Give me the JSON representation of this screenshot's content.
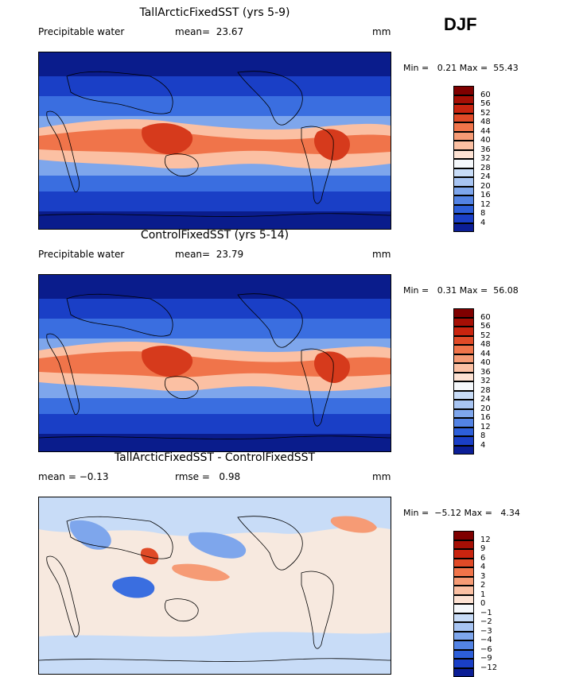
{
  "season": "DJF",
  "panels": [
    {
      "title": "TallArcticFixedSST (yrs 5-9)",
      "left_label": "Precipitable water",
      "stat_label": "mean=",
      "stat_value": "23.67",
      "stat2_label": "",
      "stat2_value": "",
      "units": "mm",
      "min_label": "Min =",
      "min": "0.21",
      "max_label": "Max =",
      "max": "55.43",
      "colorbar": {
        "labels": [
          "60",
          "56",
          "52",
          "48",
          "44",
          "40",
          "36",
          "32",
          "28",
          "24",
          "20",
          "16",
          "12",
          "8",
          "4"
        ],
        "colors": [
          "#7f0000",
          "#a50f05",
          "#c8240f",
          "#e04a27",
          "#f0744a",
          "#f69b75",
          "#fbc0a3",
          "#fde2d3",
          "#f5f8fb",
          "#c8dcf7",
          "#a7c4f2",
          "#7ea6ec",
          "#5383e4",
          "#2d5fd9",
          "#1a3fc6",
          "#0b1e96"
        ]
      }
    },
    {
      "title": "ControlFixedSST (yrs 5-14)",
      "left_label": "Precipitable water",
      "stat_label": "mean=",
      "stat_value": "23.79",
      "stat2_label": "",
      "stat2_value": "",
      "units": "mm",
      "min_label": "Min =",
      "min": "0.31",
      "max_label": "Max =",
      "max": "56.08",
      "colorbar": {
        "labels": [
          "60",
          "56",
          "52",
          "48",
          "44",
          "40",
          "36",
          "32",
          "28",
          "24",
          "20",
          "16",
          "12",
          "8",
          "4"
        ],
        "colors": [
          "#7f0000",
          "#a50f05",
          "#c8240f",
          "#e04a27",
          "#f0744a",
          "#f69b75",
          "#fbc0a3",
          "#fde2d3",
          "#f5f8fb",
          "#c8dcf7",
          "#a7c4f2",
          "#7ea6ec",
          "#5383e4",
          "#2d5fd9",
          "#1a3fc6",
          "#0b1e96"
        ]
      }
    },
    {
      "title": "TallArcticFixedSST - ControlFixedSST",
      "left_label": "mean =",
      "left_value": "−0.13",
      "stat_label": "rmse =",
      "stat_value": "0.98",
      "units": "mm",
      "min_label": "Min =",
      "min": "−5.12",
      "max_label": "Max =",
      "max": "4.34",
      "colorbar": {
        "labels": [
          "12",
          "9",
          "6",
          "4",
          "3",
          "2",
          "1",
          "0",
          "−1",
          "−2",
          "−3",
          "−4",
          "−6",
          "−9",
          "−12"
        ],
        "colors": [
          "#7f0000",
          "#a50f05",
          "#c8240f",
          "#e04a27",
          "#f0744a",
          "#f69b75",
          "#fbc0a3",
          "#fde2d3",
          "#f5f8fb",
          "#c8dcf7",
          "#a7c4f2",
          "#7ea6ec",
          "#5383e4",
          "#2d5fd9",
          "#1a3fc6",
          "#0b1e96"
        ]
      }
    }
  ],
  "map_colors": {
    "ocean_dark": "#0a1c8c",
    "blue2": "#1a3fc6",
    "blue3": "#3a6ee0",
    "blue4": "#7ea6ec",
    "pale": "#f5f8fb",
    "salmon": "#fbc0a3",
    "orange": "#f0744a",
    "red": "#d63a1c",
    "diff_bg": "#f7e9df",
    "diff_blue": "#c8dcf7"
  }
}
